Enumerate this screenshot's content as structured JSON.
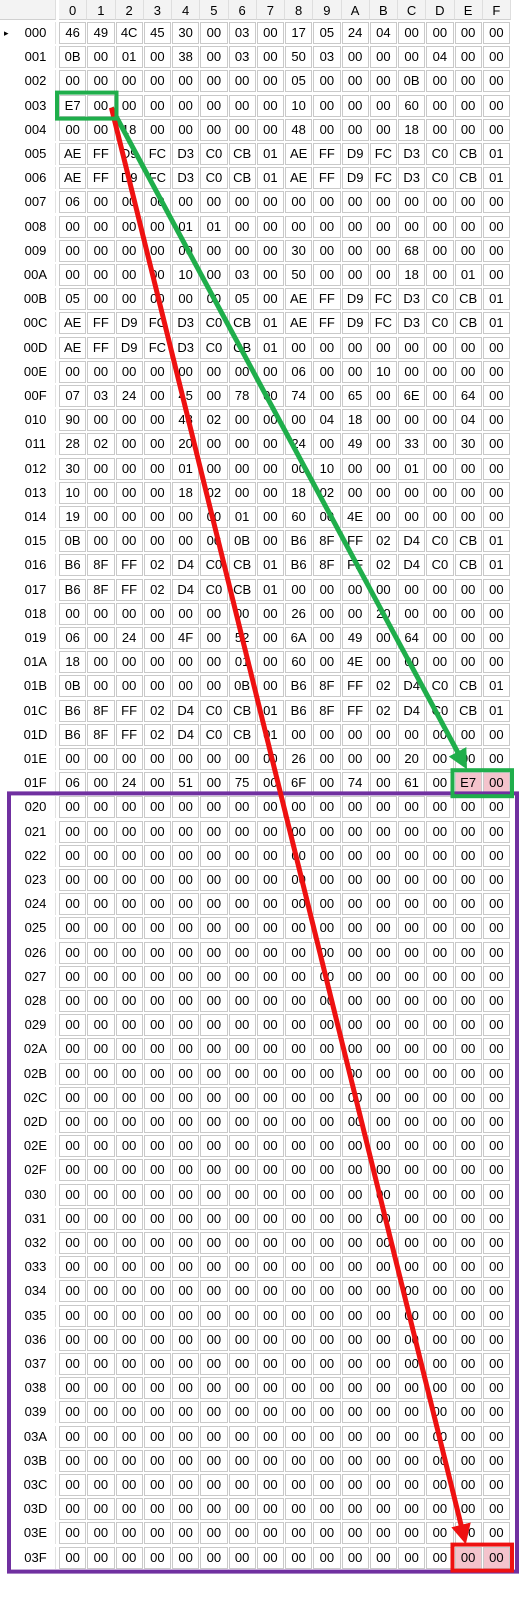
{
  "columns": [
    "0",
    "1",
    "2",
    "3",
    "4",
    "5",
    "6",
    "7",
    "8",
    "9",
    "A",
    "B",
    "C",
    "D",
    "E",
    "F"
  ],
  "current_row_marker": "▸",
  "rows": [
    {
      "addr": "000",
      "cells": [
        "46",
        "49",
        "4C",
        "45",
        "30",
        "00",
        "03",
        "00",
        "17",
        "05",
        "24",
        "04",
        "00",
        "00",
        "00",
        "00"
      ]
    },
    {
      "addr": "001",
      "cells": [
        "0B",
        "00",
        "01",
        "00",
        "38",
        "00",
        "03",
        "00",
        "50",
        "03",
        "00",
        "00",
        "00",
        "04",
        "00",
        "00"
      ]
    },
    {
      "addr": "002",
      "cells": [
        "00",
        "00",
        "00",
        "00",
        "00",
        "00",
        "00",
        "00",
        "05",
        "00",
        "00",
        "00",
        "0B",
        "00",
        "00",
        "00"
      ]
    },
    {
      "addr": "003",
      "cells": [
        "E7",
        "00",
        "00",
        "00",
        "00",
        "00",
        "00",
        "00",
        "10",
        "00",
        "00",
        "00",
        "60",
        "00",
        "00",
        "00"
      ]
    },
    {
      "addr": "004",
      "cells": [
        "00",
        "00",
        "18",
        "00",
        "00",
        "00",
        "00",
        "00",
        "48",
        "00",
        "00",
        "00",
        "18",
        "00",
        "00",
        "00"
      ]
    },
    {
      "addr": "005",
      "cells": [
        "AE",
        "FF",
        "D9",
        "FC",
        "D3",
        "C0",
        "CB",
        "01",
        "AE",
        "FF",
        "D9",
        "FC",
        "D3",
        "C0",
        "CB",
        "01"
      ]
    },
    {
      "addr": "006",
      "cells": [
        "AE",
        "FF",
        "D9",
        "FC",
        "D3",
        "C0",
        "CB",
        "01",
        "AE",
        "FF",
        "D9",
        "FC",
        "D3",
        "C0",
        "CB",
        "01"
      ]
    },
    {
      "addr": "007",
      "cells": [
        "06",
        "00",
        "00",
        "00",
        "00",
        "00",
        "00",
        "00",
        "00",
        "00",
        "00",
        "00",
        "00",
        "00",
        "00",
        "00"
      ]
    },
    {
      "addr": "008",
      "cells": [
        "00",
        "00",
        "00",
        "00",
        "01",
        "01",
        "00",
        "00",
        "00",
        "00",
        "00",
        "00",
        "00",
        "00",
        "00",
        "00"
      ]
    },
    {
      "addr": "009",
      "cells": [
        "00",
        "00",
        "00",
        "00",
        "00",
        "00",
        "00",
        "00",
        "30",
        "00",
        "00",
        "00",
        "68",
        "00",
        "00",
        "00"
      ]
    },
    {
      "addr": "00A",
      "cells": [
        "00",
        "00",
        "00",
        "00",
        "10",
        "00",
        "03",
        "00",
        "50",
        "00",
        "00",
        "00",
        "18",
        "00",
        "01",
        "00"
      ]
    },
    {
      "addr": "00B",
      "cells": [
        "05",
        "00",
        "00",
        "00",
        "00",
        "00",
        "05",
        "00",
        "AE",
        "FF",
        "D9",
        "FC",
        "D3",
        "C0",
        "CB",
        "01"
      ]
    },
    {
      "addr": "00C",
      "cells": [
        "AE",
        "FF",
        "D9",
        "FC",
        "D3",
        "C0",
        "CB",
        "01",
        "AE",
        "FF",
        "D9",
        "FC",
        "D3",
        "C0",
        "CB",
        "01"
      ]
    },
    {
      "addr": "00D",
      "cells": [
        "AE",
        "FF",
        "D9",
        "FC",
        "D3",
        "C0",
        "CB",
        "01",
        "00",
        "00",
        "00",
        "00",
        "00",
        "00",
        "00",
        "00"
      ]
    },
    {
      "addr": "00E",
      "cells": [
        "00",
        "00",
        "00",
        "00",
        "00",
        "00",
        "00",
        "00",
        "06",
        "00",
        "00",
        "10",
        "00",
        "00",
        "00",
        "00"
      ]
    },
    {
      "addr": "00F",
      "cells": [
        "07",
        "03",
        "24",
        "00",
        "45",
        "00",
        "78",
        "00",
        "74",
        "00",
        "65",
        "00",
        "6E",
        "00",
        "64",
        "00"
      ]
    },
    {
      "addr": "010",
      "cells": [
        "90",
        "00",
        "00",
        "00",
        "48",
        "02",
        "00",
        "00",
        "00",
        "04",
        "18",
        "00",
        "00",
        "00",
        "04",
        "00"
      ]
    },
    {
      "addr": "011",
      "cells": [
        "28",
        "02",
        "00",
        "00",
        "20",
        "00",
        "00",
        "00",
        "24",
        "00",
        "49",
        "00",
        "33",
        "00",
        "30",
        "00"
      ]
    },
    {
      "addr": "012",
      "cells": [
        "30",
        "00",
        "00",
        "00",
        "01",
        "00",
        "00",
        "00",
        "00",
        "10",
        "00",
        "00",
        "01",
        "00",
        "00",
        "00"
      ]
    },
    {
      "addr": "013",
      "cells": [
        "10",
        "00",
        "00",
        "00",
        "18",
        "02",
        "00",
        "00",
        "18",
        "02",
        "00",
        "00",
        "00",
        "00",
        "00",
        "00"
      ]
    },
    {
      "addr": "014",
      "cells": [
        "19",
        "00",
        "00",
        "00",
        "00",
        "00",
        "01",
        "00",
        "60",
        "00",
        "4E",
        "00",
        "00",
        "00",
        "00",
        "00"
      ]
    },
    {
      "addr": "015",
      "cells": [
        "0B",
        "00",
        "00",
        "00",
        "00",
        "00",
        "0B",
        "00",
        "B6",
        "8F",
        "FF",
        "02",
        "D4",
        "C0",
        "CB",
        "01"
      ]
    },
    {
      "addr": "016",
      "cells": [
        "B6",
        "8F",
        "FF",
        "02",
        "D4",
        "C0",
        "CB",
        "01",
        "B6",
        "8F",
        "FF",
        "02",
        "D4",
        "C0",
        "CB",
        "01"
      ]
    },
    {
      "addr": "017",
      "cells": [
        "B6",
        "8F",
        "FF",
        "02",
        "D4",
        "C0",
        "CB",
        "01",
        "00",
        "00",
        "00",
        "00",
        "00",
        "00",
        "00",
        "00"
      ]
    },
    {
      "addr": "018",
      "cells": [
        "00",
        "00",
        "00",
        "00",
        "00",
        "00",
        "00",
        "00",
        "26",
        "00",
        "00",
        "20",
        "00",
        "00",
        "00",
        "00"
      ]
    },
    {
      "addr": "019",
      "cells": [
        "06",
        "00",
        "24",
        "00",
        "4F",
        "00",
        "52",
        "00",
        "6A",
        "00",
        "49",
        "00",
        "64",
        "00",
        "00",
        "00"
      ]
    },
    {
      "addr": "01A",
      "cells": [
        "18",
        "00",
        "00",
        "00",
        "00",
        "00",
        "01",
        "00",
        "60",
        "00",
        "4E",
        "00",
        "00",
        "00",
        "00",
        "00"
      ]
    },
    {
      "addr": "01B",
      "cells": [
        "0B",
        "00",
        "00",
        "00",
        "00",
        "00",
        "0B",
        "00",
        "B6",
        "8F",
        "FF",
        "02",
        "D4",
        "C0",
        "CB",
        "01"
      ]
    },
    {
      "addr": "01C",
      "cells": [
        "B6",
        "8F",
        "FF",
        "02",
        "D4",
        "C0",
        "CB",
        "01",
        "B6",
        "8F",
        "FF",
        "02",
        "D4",
        "C0",
        "CB",
        "01"
      ]
    },
    {
      "addr": "01D",
      "cells": [
        "B6",
        "8F",
        "FF",
        "02",
        "D4",
        "C0",
        "CB",
        "01",
        "00",
        "00",
        "00",
        "00",
        "00",
        "00",
        "00",
        "00"
      ]
    },
    {
      "addr": "01E",
      "cells": [
        "00",
        "00",
        "00",
        "00",
        "00",
        "00",
        "00",
        "00",
        "26",
        "00",
        "00",
        "00",
        "20",
        "00",
        "00",
        "00"
      ]
    },
    {
      "addr": "01F",
      "cells": [
        "06",
        "00",
        "24",
        "00",
        "51",
        "00",
        "75",
        "00",
        "6F",
        "00",
        "74",
        "00",
        "61",
        "00",
        "E7",
        "00"
      ]
    },
    {
      "addr": "020",
      "cells": [
        "00",
        "00",
        "00",
        "00",
        "00",
        "00",
        "00",
        "00",
        "00",
        "00",
        "00",
        "00",
        "00",
        "00",
        "00",
        "00"
      ]
    },
    {
      "addr": "021",
      "cells": [
        "00",
        "00",
        "00",
        "00",
        "00",
        "00",
        "00",
        "00",
        "00",
        "00",
        "00",
        "00",
        "00",
        "00",
        "00",
        "00"
      ]
    },
    {
      "addr": "022",
      "cells": [
        "00",
        "00",
        "00",
        "00",
        "00",
        "00",
        "00",
        "00",
        "00",
        "00",
        "00",
        "00",
        "00",
        "00",
        "00",
        "00"
      ]
    },
    {
      "addr": "023",
      "cells": [
        "00",
        "00",
        "00",
        "00",
        "00",
        "00",
        "00",
        "00",
        "00",
        "00",
        "00",
        "00",
        "00",
        "00",
        "00",
        "00"
      ]
    },
    {
      "addr": "024",
      "cells": [
        "00",
        "00",
        "00",
        "00",
        "00",
        "00",
        "00",
        "00",
        "00",
        "00",
        "00",
        "00",
        "00",
        "00",
        "00",
        "00"
      ]
    },
    {
      "addr": "025",
      "cells": [
        "00",
        "00",
        "00",
        "00",
        "00",
        "00",
        "00",
        "00",
        "00",
        "00",
        "00",
        "00",
        "00",
        "00",
        "00",
        "00"
      ]
    },
    {
      "addr": "026",
      "cells": [
        "00",
        "00",
        "00",
        "00",
        "00",
        "00",
        "00",
        "00",
        "00",
        "00",
        "00",
        "00",
        "00",
        "00",
        "00",
        "00"
      ]
    },
    {
      "addr": "027",
      "cells": [
        "00",
        "00",
        "00",
        "00",
        "00",
        "00",
        "00",
        "00",
        "00",
        "00",
        "00",
        "00",
        "00",
        "00",
        "00",
        "00"
      ]
    },
    {
      "addr": "028",
      "cells": [
        "00",
        "00",
        "00",
        "00",
        "00",
        "00",
        "00",
        "00",
        "00",
        "00",
        "00",
        "00",
        "00",
        "00",
        "00",
        "00"
      ]
    },
    {
      "addr": "029",
      "cells": [
        "00",
        "00",
        "00",
        "00",
        "00",
        "00",
        "00",
        "00",
        "00",
        "00",
        "00",
        "00",
        "00",
        "00",
        "00",
        "00"
      ]
    },
    {
      "addr": "02A",
      "cells": [
        "00",
        "00",
        "00",
        "00",
        "00",
        "00",
        "00",
        "00",
        "00",
        "00",
        "00",
        "00",
        "00",
        "00",
        "00",
        "00"
      ]
    },
    {
      "addr": "02B",
      "cells": [
        "00",
        "00",
        "00",
        "00",
        "00",
        "00",
        "00",
        "00",
        "00",
        "00",
        "00",
        "00",
        "00",
        "00",
        "00",
        "00"
      ]
    },
    {
      "addr": "02C",
      "cells": [
        "00",
        "00",
        "00",
        "00",
        "00",
        "00",
        "00",
        "00",
        "00",
        "00",
        "00",
        "00",
        "00",
        "00",
        "00",
        "00"
      ]
    },
    {
      "addr": "02D",
      "cells": [
        "00",
        "00",
        "00",
        "00",
        "00",
        "00",
        "00",
        "00",
        "00",
        "00",
        "00",
        "00",
        "00",
        "00",
        "00",
        "00"
      ]
    },
    {
      "addr": "02E",
      "cells": [
        "00",
        "00",
        "00",
        "00",
        "00",
        "00",
        "00",
        "00",
        "00",
        "00",
        "00",
        "00",
        "00",
        "00",
        "00",
        "00"
      ]
    },
    {
      "addr": "02F",
      "cells": [
        "00",
        "00",
        "00",
        "00",
        "00",
        "00",
        "00",
        "00",
        "00",
        "00",
        "00",
        "00",
        "00",
        "00",
        "00",
        "00"
      ]
    },
    {
      "addr": "030",
      "cells": [
        "00",
        "00",
        "00",
        "00",
        "00",
        "00",
        "00",
        "00",
        "00",
        "00",
        "00",
        "00",
        "00",
        "00",
        "00",
        "00"
      ]
    },
    {
      "addr": "031",
      "cells": [
        "00",
        "00",
        "00",
        "00",
        "00",
        "00",
        "00",
        "00",
        "00",
        "00",
        "00",
        "00",
        "00",
        "00",
        "00",
        "00"
      ]
    },
    {
      "addr": "032",
      "cells": [
        "00",
        "00",
        "00",
        "00",
        "00",
        "00",
        "00",
        "00",
        "00",
        "00",
        "00",
        "00",
        "00",
        "00",
        "00",
        "00"
      ]
    },
    {
      "addr": "033",
      "cells": [
        "00",
        "00",
        "00",
        "00",
        "00",
        "00",
        "00",
        "00",
        "00",
        "00",
        "00",
        "00",
        "00",
        "00",
        "00",
        "00"
      ]
    },
    {
      "addr": "034",
      "cells": [
        "00",
        "00",
        "00",
        "00",
        "00",
        "00",
        "00",
        "00",
        "00",
        "00",
        "00",
        "00",
        "00",
        "00",
        "00",
        "00"
      ]
    },
    {
      "addr": "035",
      "cells": [
        "00",
        "00",
        "00",
        "00",
        "00",
        "00",
        "00",
        "00",
        "00",
        "00",
        "00",
        "00",
        "00",
        "00",
        "00",
        "00"
      ]
    },
    {
      "addr": "036",
      "cells": [
        "00",
        "00",
        "00",
        "00",
        "00",
        "00",
        "00",
        "00",
        "00",
        "00",
        "00",
        "00",
        "00",
        "00",
        "00",
        "00"
      ]
    },
    {
      "addr": "037",
      "cells": [
        "00",
        "00",
        "00",
        "00",
        "00",
        "00",
        "00",
        "00",
        "00",
        "00",
        "00",
        "00",
        "00",
        "00",
        "00",
        "00"
      ]
    },
    {
      "addr": "038",
      "cells": [
        "00",
        "00",
        "00",
        "00",
        "00",
        "00",
        "00",
        "00",
        "00",
        "00",
        "00",
        "00",
        "00",
        "00",
        "00",
        "00"
      ]
    },
    {
      "addr": "039",
      "cells": [
        "00",
        "00",
        "00",
        "00",
        "00",
        "00",
        "00",
        "00",
        "00",
        "00",
        "00",
        "00",
        "00",
        "00",
        "00",
        "00"
      ]
    },
    {
      "addr": "03A",
      "cells": [
        "00",
        "00",
        "00",
        "00",
        "00",
        "00",
        "00",
        "00",
        "00",
        "00",
        "00",
        "00",
        "00",
        "00",
        "00",
        "00"
      ]
    },
    {
      "addr": "03B",
      "cells": [
        "00",
        "00",
        "00",
        "00",
        "00",
        "00",
        "00",
        "00",
        "00",
        "00",
        "00",
        "00",
        "00",
        "00",
        "00",
        "00"
      ]
    },
    {
      "addr": "03C",
      "cells": [
        "00",
        "00",
        "00",
        "00",
        "00",
        "00",
        "00",
        "00",
        "00",
        "00",
        "00",
        "00",
        "00",
        "00",
        "00",
        "00"
      ]
    },
    {
      "addr": "03D",
      "cells": [
        "00",
        "00",
        "00",
        "00",
        "00",
        "00",
        "00",
        "00",
        "00",
        "00",
        "00",
        "00",
        "00",
        "00",
        "00",
        "00"
      ]
    },
    {
      "addr": "03E",
      "cells": [
        "00",
        "00",
        "00",
        "00",
        "00",
        "00",
        "00",
        "00",
        "00",
        "00",
        "00",
        "00",
        "00",
        "00",
        "00",
        "00"
      ]
    },
    {
      "addr": "03F",
      "cells": [
        "00",
        "00",
        "00",
        "00",
        "00",
        "00",
        "00",
        "00",
        "00",
        "00",
        "00",
        "00",
        "00",
        "00",
        "00",
        "00"
      ]
    }
  ],
  "highlighted_cells": [
    {
      "addr": "01F",
      "col": "E"
    },
    {
      "addr": "01F",
      "col": "F"
    },
    {
      "addr": "03F",
      "col": "E"
    },
    {
      "addr": "03F",
      "col": "F"
    }
  ],
  "annotations": {
    "green_box_1": {
      "addr": "003",
      "cols": [
        "0",
        "1"
      ]
    },
    "green_box_2": {
      "addr": "01F",
      "cols": [
        "E",
        "F"
      ]
    },
    "red_box": {
      "addr": "03F",
      "cols": [
        "E",
        "F"
      ]
    },
    "purple_region": {
      "from": "020",
      "to": "03F"
    },
    "green_arrow": {
      "from": "003:1",
      "to": "01E:E"
    },
    "red_arrow": {
      "from": "003:1",
      "to": "03E:E"
    }
  },
  "colors": {
    "green": "#1fae4b",
    "red": "#ee1111",
    "purple": "#7030a0",
    "highlight": "#f4c3cc",
    "grid_line": "#c9c9c9"
  }
}
